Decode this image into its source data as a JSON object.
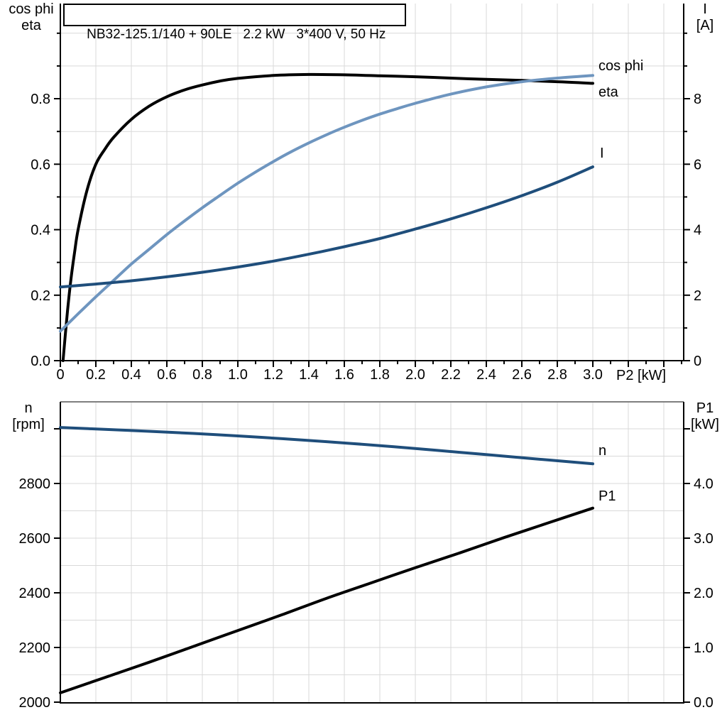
{
  "title_box": {
    "text": "NB32-125.1/140 + 90LE   2.2 kW   3*400 V, 50 Hz"
  },
  "colors": {
    "black": "#000000",
    "light_blue": "#6E95BF",
    "dark_blue": "#1F4E7B",
    "grid": "#D9D9D9",
    "frame_gray": "#7F7F7F",
    "background": "#FFFFFF"
  },
  "chart_data": [
    {
      "id": "top",
      "type": "line",
      "title": "NB32-125.1/140 + 90LE  2.2 kW  3*400 V, 50 Hz",
      "xlabel": "P2 [kW]",
      "x_range": [
        0,
        3.52
      ],
      "grid": true,
      "x_ticks": {
        "values": [
          0,
          0.2,
          0.4,
          0.6,
          0.8,
          1.0,
          1.2,
          1.4,
          1.6,
          1.8,
          2.0,
          2.2,
          2.4,
          2.6,
          2.8,
          3.0,
          3.2,
          3.4
        ],
        "labels": [
          "0",
          "0.2",
          "0.4",
          "0.6",
          "0.8",
          "1.0",
          "1.2",
          "1.4",
          "1.6",
          "1.8",
          "2.0",
          "2.2",
          "2.4",
          "2.6",
          "2.8",
          "3.0",
          "",
          ""
        ],
        "minor_values": [
          0.1,
          0.3,
          0.5,
          0.7,
          0.9,
          1.1,
          1.3,
          1.5,
          1.7,
          1.9,
          2.1,
          2.3,
          2.5,
          2.7,
          2.9,
          3.1,
          3.3,
          3.5
        ]
      },
      "axes": {
        "left": {
          "title_lines": [
            "cos phi",
            "eta"
          ],
          "range": [
            0,
            1.004
          ],
          "grid_step": 0.1,
          "tick_values": [
            0,
            0.2,
            0.4,
            0.6,
            0.8
          ],
          "tick_labels": [
            "0.0",
            "0.2",
            "0.4",
            "0.6",
            "0.8"
          ],
          "minor_tick_values": [
            0.1,
            0.3,
            0.5,
            0.7,
            0.9,
            1.0
          ]
        },
        "right": {
          "title_lines": [
            "I",
            "[A]"
          ],
          "range": [
            0,
            10.04
          ],
          "tick_values": [
            0,
            2,
            4,
            6,
            8
          ],
          "tick_labels": [
            "0",
            "2",
            "4",
            "6",
            "8"
          ],
          "minor_tick_values": [
            1,
            3,
            5,
            7,
            9,
            10
          ]
        }
      },
      "series": [
        {
          "name": "eta",
          "label": "eta",
          "axis": "left",
          "color_key": "black",
          "points": [
            [
              0.015,
              0
            ],
            [
              0.04,
              0.15
            ],
            [
              0.06,
              0.25
            ],
            [
              0.08,
              0.33
            ],
            [
              0.1,
              0.4
            ],
            [
              0.15,
              0.52
            ],
            [
              0.2,
              0.6
            ],
            [
              0.25,
              0.645
            ],
            [
              0.3,
              0.682
            ],
            [
              0.4,
              0.737
            ],
            [
              0.5,
              0.777
            ],
            [
              0.6,
              0.806
            ],
            [
              0.7,
              0.827
            ],
            [
              0.8,
              0.842
            ],
            [
              0.9,
              0.854
            ],
            [
              1.0,
              0.862
            ],
            [
              1.2,
              0.871
            ],
            [
              1.4,
              0.874
            ],
            [
              1.6,
              0.873
            ],
            [
              1.8,
              0.87
            ],
            [
              2.0,
              0.867
            ],
            [
              2.2,
              0.863
            ],
            [
              2.4,
              0.859
            ],
            [
              2.6,
              0.856
            ],
            [
              2.8,
              0.852
            ],
            [
              3.0,
              0.847
            ]
          ]
        },
        {
          "name": "cos phi",
          "label": "cos phi",
          "axis": "left",
          "color_key": "light_blue",
          "points": [
            [
              0,
              0.09
            ],
            [
              0.1,
              0.143
            ],
            [
              0.2,
              0.195
            ],
            [
              0.3,
              0.245
            ],
            [
              0.4,
              0.295
            ],
            [
              0.5,
              0.34
            ],
            [
              0.6,
              0.385
            ],
            [
              0.7,
              0.427
            ],
            [
              0.8,
              0.467
            ],
            [
              0.9,
              0.505
            ],
            [
              1.0,
              0.542
            ],
            [
              1.1,
              0.576
            ],
            [
              1.2,
              0.608
            ],
            [
              1.3,
              0.638
            ],
            [
              1.4,
              0.665
            ],
            [
              1.5,
              0.69
            ],
            [
              1.6,
              0.713
            ],
            [
              1.7,
              0.734
            ],
            [
              1.8,
              0.753
            ],
            [
              1.9,
              0.77
            ],
            [
              2.0,
              0.786
            ],
            [
              2.2,
              0.814
            ],
            [
              2.4,
              0.836
            ],
            [
              2.6,
              0.852
            ],
            [
              2.8,
              0.863
            ],
            [
              3.0,
              0.871
            ]
          ]
        },
        {
          "name": "I",
          "label": "I",
          "axis": "right",
          "color_key": "dark_blue",
          "points": [
            [
              0,
              2.25
            ],
            [
              0.2,
              2.34
            ],
            [
              0.4,
              2.44
            ],
            [
              0.6,
              2.56
            ],
            [
              0.8,
              2.7
            ],
            [
              1.0,
              2.86
            ],
            [
              1.2,
              3.04
            ],
            [
              1.4,
              3.25
            ],
            [
              1.6,
              3.48
            ],
            [
              1.8,
              3.73
            ],
            [
              2.0,
              4.02
            ],
            [
              2.2,
              4.33
            ],
            [
              2.4,
              4.67
            ],
            [
              2.6,
              5.04
            ],
            [
              2.8,
              5.45
            ],
            [
              3.0,
              5.92
            ]
          ]
        }
      ]
    },
    {
      "id": "bottom",
      "type": "line",
      "title": "",
      "xlabel": "",
      "x_range": [
        0,
        3.52
      ],
      "grid": true,
      "x_ticks": {
        "values": [],
        "labels": [],
        "minor_values": []
      },
      "axes": {
        "left": {
          "title_lines": [
            "n",
            "[rpm]"
          ],
          "range": [
            2000,
            3100
          ],
          "grid_step": 100,
          "tick_values": [
            2000,
            2200,
            2400,
            2600,
            2800,
            3000
          ],
          "tick_labels": [
            "2000",
            "2200",
            "2400",
            "2600",
            "2800",
            ""
          ],
          "minor_tick_values": []
        },
        "right": {
          "title_lines": [
            "P1",
            "[kW]"
          ],
          "range": [
            0,
            5.5
          ],
          "tick_values": [
            0,
            1,
            2,
            3,
            4,
            5
          ],
          "tick_labels": [
            "0.0",
            "1.0",
            "2.0",
            "3.0",
            "4.0",
            ""
          ],
          "minor_tick_values": []
        }
      },
      "series": [
        {
          "name": "n",
          "label": "n",
          "axis": "left",
          "color_key": "dark_blue",
          "points": [
            [
              0,
              3005
            ],
            [
              0.25,
              2998
            ],
            [
              0.5,
              2991
            ],
            [
              0.75,
              2983
            ],
            [
              1.0,
              2974
            ],
            [
              1.25,
              2964
            ],
            [
              1.5,
              2953
            ],
            [
              1.75,
              2941
            ],
            [
              2.0,
              2928
            ],
            [
              2.25,
              2914
            ],
            [
              2.5,
              2900
            ],
            [
              2.75,
              2886
            ],
            [
              3.0,
              2872
            ]
          ]
        },
        {
          "name": "P1",
          "label": "P1",
          "axis": "right",
          "color_key": "black",
          "points": [
            [
              0,
              0.17
            ],
            [
              0.25,
              0.45
            ],
            [
              0.5,
              0.73
            ],
            [
              0.75,
              1.02
            ],
            [
              1.0,
              1.31
            ],
            [
              1.25,
              1.6
            ],
            [
              1.5,
              1.9
            ],
            [
              1.75,
              2.18
            ],
            [
              2.0,
              2.46
            ],
            [
              2.25,
              2.73
            ],
            [
              2.5,
              3.01
            ],
            [
              2.75,
              3.28
            ],
            [
              3.0,
              3.55
            ]
          ]
        }
      ]
    }
  ]
}
